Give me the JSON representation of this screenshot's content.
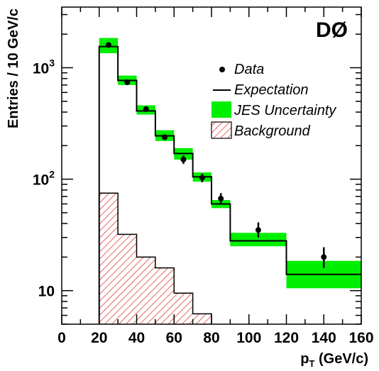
{
  "chart_data": {
    "type": "histogram",
    "experiment_label": "DØ",
    "xlabel_main": "p",
    "xlabel_sub": "T",
    "xlabel_unit": " (GeV/c)",
    "ylabel": "Entries / 10 GeV/c",
    "xlim": [
      0,
      160
    ],
    "ylim": [
      5,
      3500
    ],
    "yscale": "log",
    "x_ticks": [
      0,
      20,
      40,
      60,
      80,
      100,
      120,
      140,
      160
    ],
    "y_ticks": [
      {
        "value": 10,
        "base": "10",
        "exp": ""
      },
      {
        "value": 100,
        "base": "10",
        "exp": "2"
      },
      {
        "value": 1000,
        "base": "10",
        "exp": "3"
      }
    ],
    "bin_edges": [
      20,
      30,
      40,
      50,
      60,
      70,
      80,
      90,
      120,
      160
    ],
    "series": [
      {
        "name": "Expectation",
        "values": [
          1550,
          770,
          410,
          245,
          170,
          105,
          60,
          28,
          14
        ]
      },
      {
        "name": "JES Uncertainty",
        "low": [
          1350,
          700,
          380,
          220,
          150,
          95,
          55,
          25,
          10.5
        ],
        "high": [
          1850,
          850,
          460,
          275,
          190,
          115,
          65,
          33,
          18.5
        ]
      },
      {
        "name": "Background",
        "edges": [
          20,
          30,
          40,
          50,
          60,
          70,
          80
        ],
        "values": [
          75,
          32,
          20,
          16,
          9.5,
          6.2
        ]
      },
      {
        "name": "Data",
        "x": [
          25,
          35,
          45,
          55,
          65,
          75,
          85,
          105,
          140
        ],
        "y": [
          1600,
          740,
          425,
          238,
          150,
          103,
          67,
          35,
          20
        ],
        "err_low": [
          1560,
          715,
          410,
          228,
          137,
          94,
          60,
          30,
          16
        ],
        "err_high": [
          1640,
          765,
          440,
          248,
          163,
          112,
          75,
          41,
          24.5
        ]
      }
    ],
    "legend_position": "top-right",
    "legend": [
      {
        "label": "Data",
        "symbol": "marker"
      },
      {
        "label": "Expectation",
        "symbol": "line"
      },
      {
        "label": "JES Uncertainty",
        "symbol": "fill"
      },
      {
        "label": "Background",
        "symbol": "hatch"
      }
    ],
    "colors": {
      "band": "#00ee00",
      "hatch": "#dd2222",
      "line": "#000000",
      "marker": "#000000"
    }
  }
}
